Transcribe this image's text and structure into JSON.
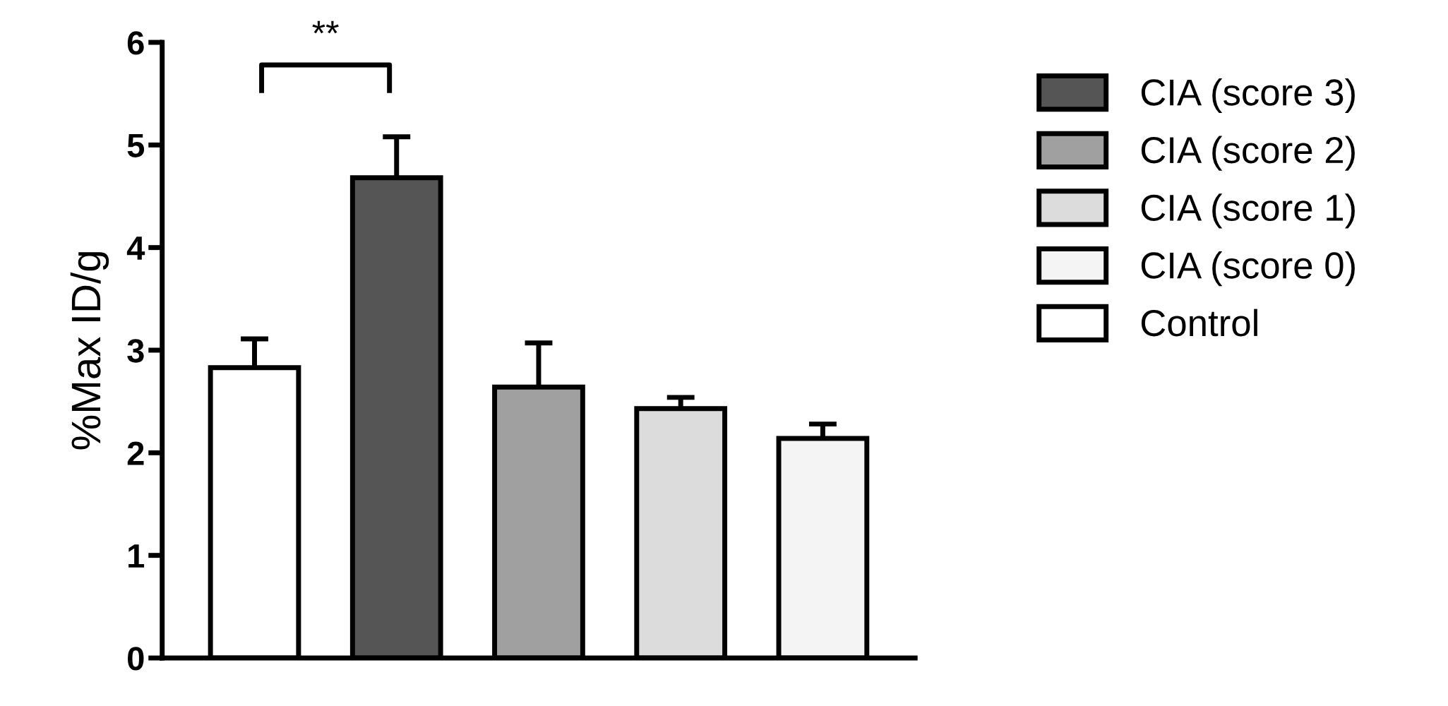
{
  "chart_data": {
    "type": "bar",
    "categories": [
      null,
      null,
      null,
      null,
      null
    ],
    "series": [
      {
        "name": "CIA (score 3)",
        "color": "#555555",
        "values": [
          null,
          4.68,
          null,
          null,
          null
        ],
        "errors": [
          null,
          0.4,
          null,
          null,
          null
        ]
      },
      {
        "name": "CIA (score 2)",
        "color": "#a0a0a0",
        "values": [
          null,
          null,
          2.64,
          null,
          null
        ],
        "errors": [
          null,
          null,
          0.43,
          null,
          null
        ]
      },
      {
        "name": "CIA (score 1)",
        "color": "#dcdcdc",
        "values": [
          null,
          null,
          null,
          2.43,
          null
        ],
        "errors": [
          null,
          null,
          null,
          0.11,
          null
        ]
      },
      {
        "name": "CIA (score 0)",
        "color": "#f4f4f4",
        "values": [
          null,
          null,
          null,
          null,
          2.14
        ],
        "errors": [
          null,
          null,
          null,
          null,
          0.14
        ]
      },
      {
        "name": "Control",
        "color": "#ffffff",
        "values": [
          2.83,
          null,
          null,
          null,
          null
        ],
        "errors": [
          0.28,
          null,
          null,
          null,
          null
        ]
      }
    ],
    "ylabel": "%Max ID/g",
    "ylim": [
      0,
      6
    ],
    "yticks": [
      0,
      1,
      2,
      3,
      4,
      5,
      6
    ],
    "annotations": [
      "**"
    ],
    "legend": "right",
    "grid": false
  }
}
